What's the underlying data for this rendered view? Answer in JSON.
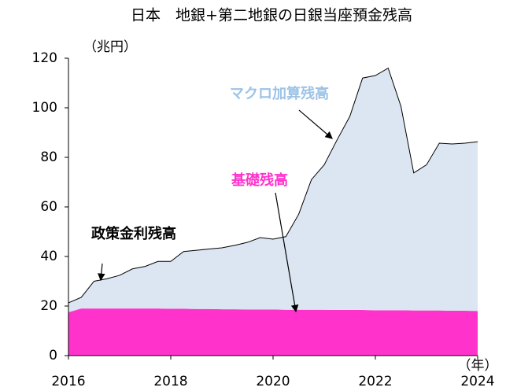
{
  "chart_data": {
    "type": "stacked_area",
    "title": "日本　地銀+第二地銀の日銀当座預金残高",
    "y_label": "（兆円）",
    "x_label": "（年）",
    "x": [
      2016.0,
      2016.25,
      2016.5,
      2016.75,
      2017.0,
      2017.25,
      2017.5,
      2017.75,
      2018.0,
      2018.25,
      2018.5,
      2018.75,
      2019.0,
      2019.25,
      2019.5,
      2019.75,
      2020.0,
      2020.25,
      2020.5,
      2020.75,
      2021.0,
      2021.25,
      2021.5,
      2021.75,
      2022.0,
      2022.25,
      2022.5,
      2022.75,
      2023.0,
      2023.25,
      2023.5,
      2023.75,
      2024.0
    ],
    "series": [
      {
        "name": "基礎残高",
        "color": "#ff33cc",
        "values": [
          17.5,
          19,
          19,
          19,
          19,
          19,
          19,
          19,
          18.9,
          18.9,
          18.8,
          18.8,
          18.7,
          18.7,
          18.6,
          18.6,
          18.6,
          18.5,
          18.5,
          18.5,
          18.5,
          18.4,
          18.4,
          18.4,
          18.3,
          18.3,
          18.3,
          18.2,
          18.2,
          18.2,
          18.1,
          18.1,
          18
        ]
      },
      {
        "name": "マクロ加算残高",
        "color": "#dce6f2",
        "values": [
          3.8,
          4.5,
          11,
          12,
          13.4,
          16,
          17,
          19,
          19.1,
          23.1,
          23.7,
          24.2,
          24.8,
          25.8,
          27.1,
          29,
          28.4,
          29.5,
          38.5,
          52.5,
          58.5,
          68.6,
          78.1,
          93.6,
          94.7,
          97.7,
          82.3,
          55.5,
          58.8,
          67.5,
          67.3,
          67.6,
          68.3
        ]
      }
    ],
    "annotations": [
      "マクロ加算残高",
      "基礎残高",
      "政策金利残高"
    ],
    "annotation_colors": [
      "#9dc3e6",
      "#ff33cc",
      "#000000"
    ],
    "xlim": [
      2016,
      2024
    ],
    "xticks": [
      2016,
      2018,
      2020,
      2022,
      2024
    ],
    "ylim": [
      0,
      120
    ],
    "yticks": [
      0,
      20,
      40,
      60,
      80,
      100,
      120
    ]
  }
}
